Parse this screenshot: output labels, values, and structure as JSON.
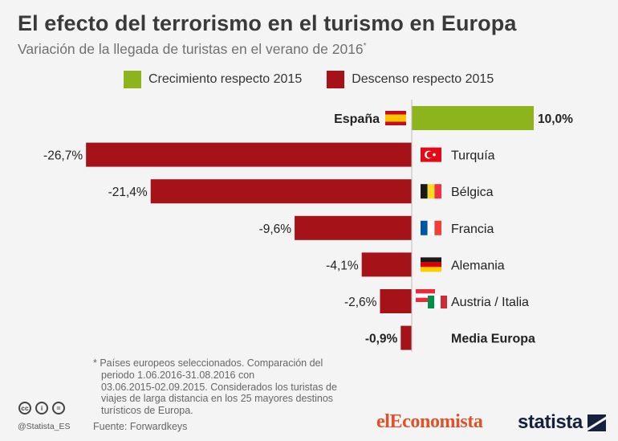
{
  "title": "El efecto del terrorismo en el turismo en Europa",
  "subtitle": "Variación de la llegada de turistas en el verano de 2016",
  "subtitle_mark": "*",
  "colors": {
    "growth": "#8db41c",
    "decline": "#a51218",
    "background": "#f4f4f4"
  },
  "chart_data": {
    "type": "bar",
    "orientation": "horizontal",
    "categories": [
      "España",
      "Turquía",
      "Bélgica",
      "Francia",
      "Alemania",
      "Austria / Italia",
      "Media Europa"
    ],
    "values": [
      10.0,
      -26.7,
      -21.4,
      -9.6,
      -4.1,
      -2.6,
      -0.9
    ],
    "value_labels": [
      "10,0%",
      "-26,7%",
      "-21,4%",
      "-9,6%",
      "-4,1%",
      "-2,6%",
      "-0,9%"
    ],
    "bold_categories": [
      "España",
      "Media Europa"
    ],
    "flags": [
      "flag-spain-icon",
      "flag-turkey-icon",
      "flag-belgium-icon",
      "flag-france-icon",
      "flag-germany-icon",
      "flag-austria-italy-icon",
      ""
    ],
    "legend": [
      "Crecimiento respecto 2015",
      "Descenso respecto 2015"
    ],
    "legend_placement": "top",
    "xlim": [
      -27,
      10
    ],
    "grid": false
  },
  "footnote": [
    "* Países europeos seleccionados. Comparación del",
    "periodo 1.06.2016-31.08.2016 con",
    "03.06.2015-02.09.2015. Considerados los turistas de",
    "viajes de larga distancia en los 25 mayores destinos",
    "turísticos de Europa."
  ],
  "source": "Fuente: Forwardkeys",
  "handle": "@Statista_ES",
  "cc_icons": [
    "cc-icon",
    "by-icon",
    "equal-icon"
  ],
  "brand_eleconomista": {
    "part1": "el",
    "part2": "Economista"
  },
  "brand_statista": "statista"
}
